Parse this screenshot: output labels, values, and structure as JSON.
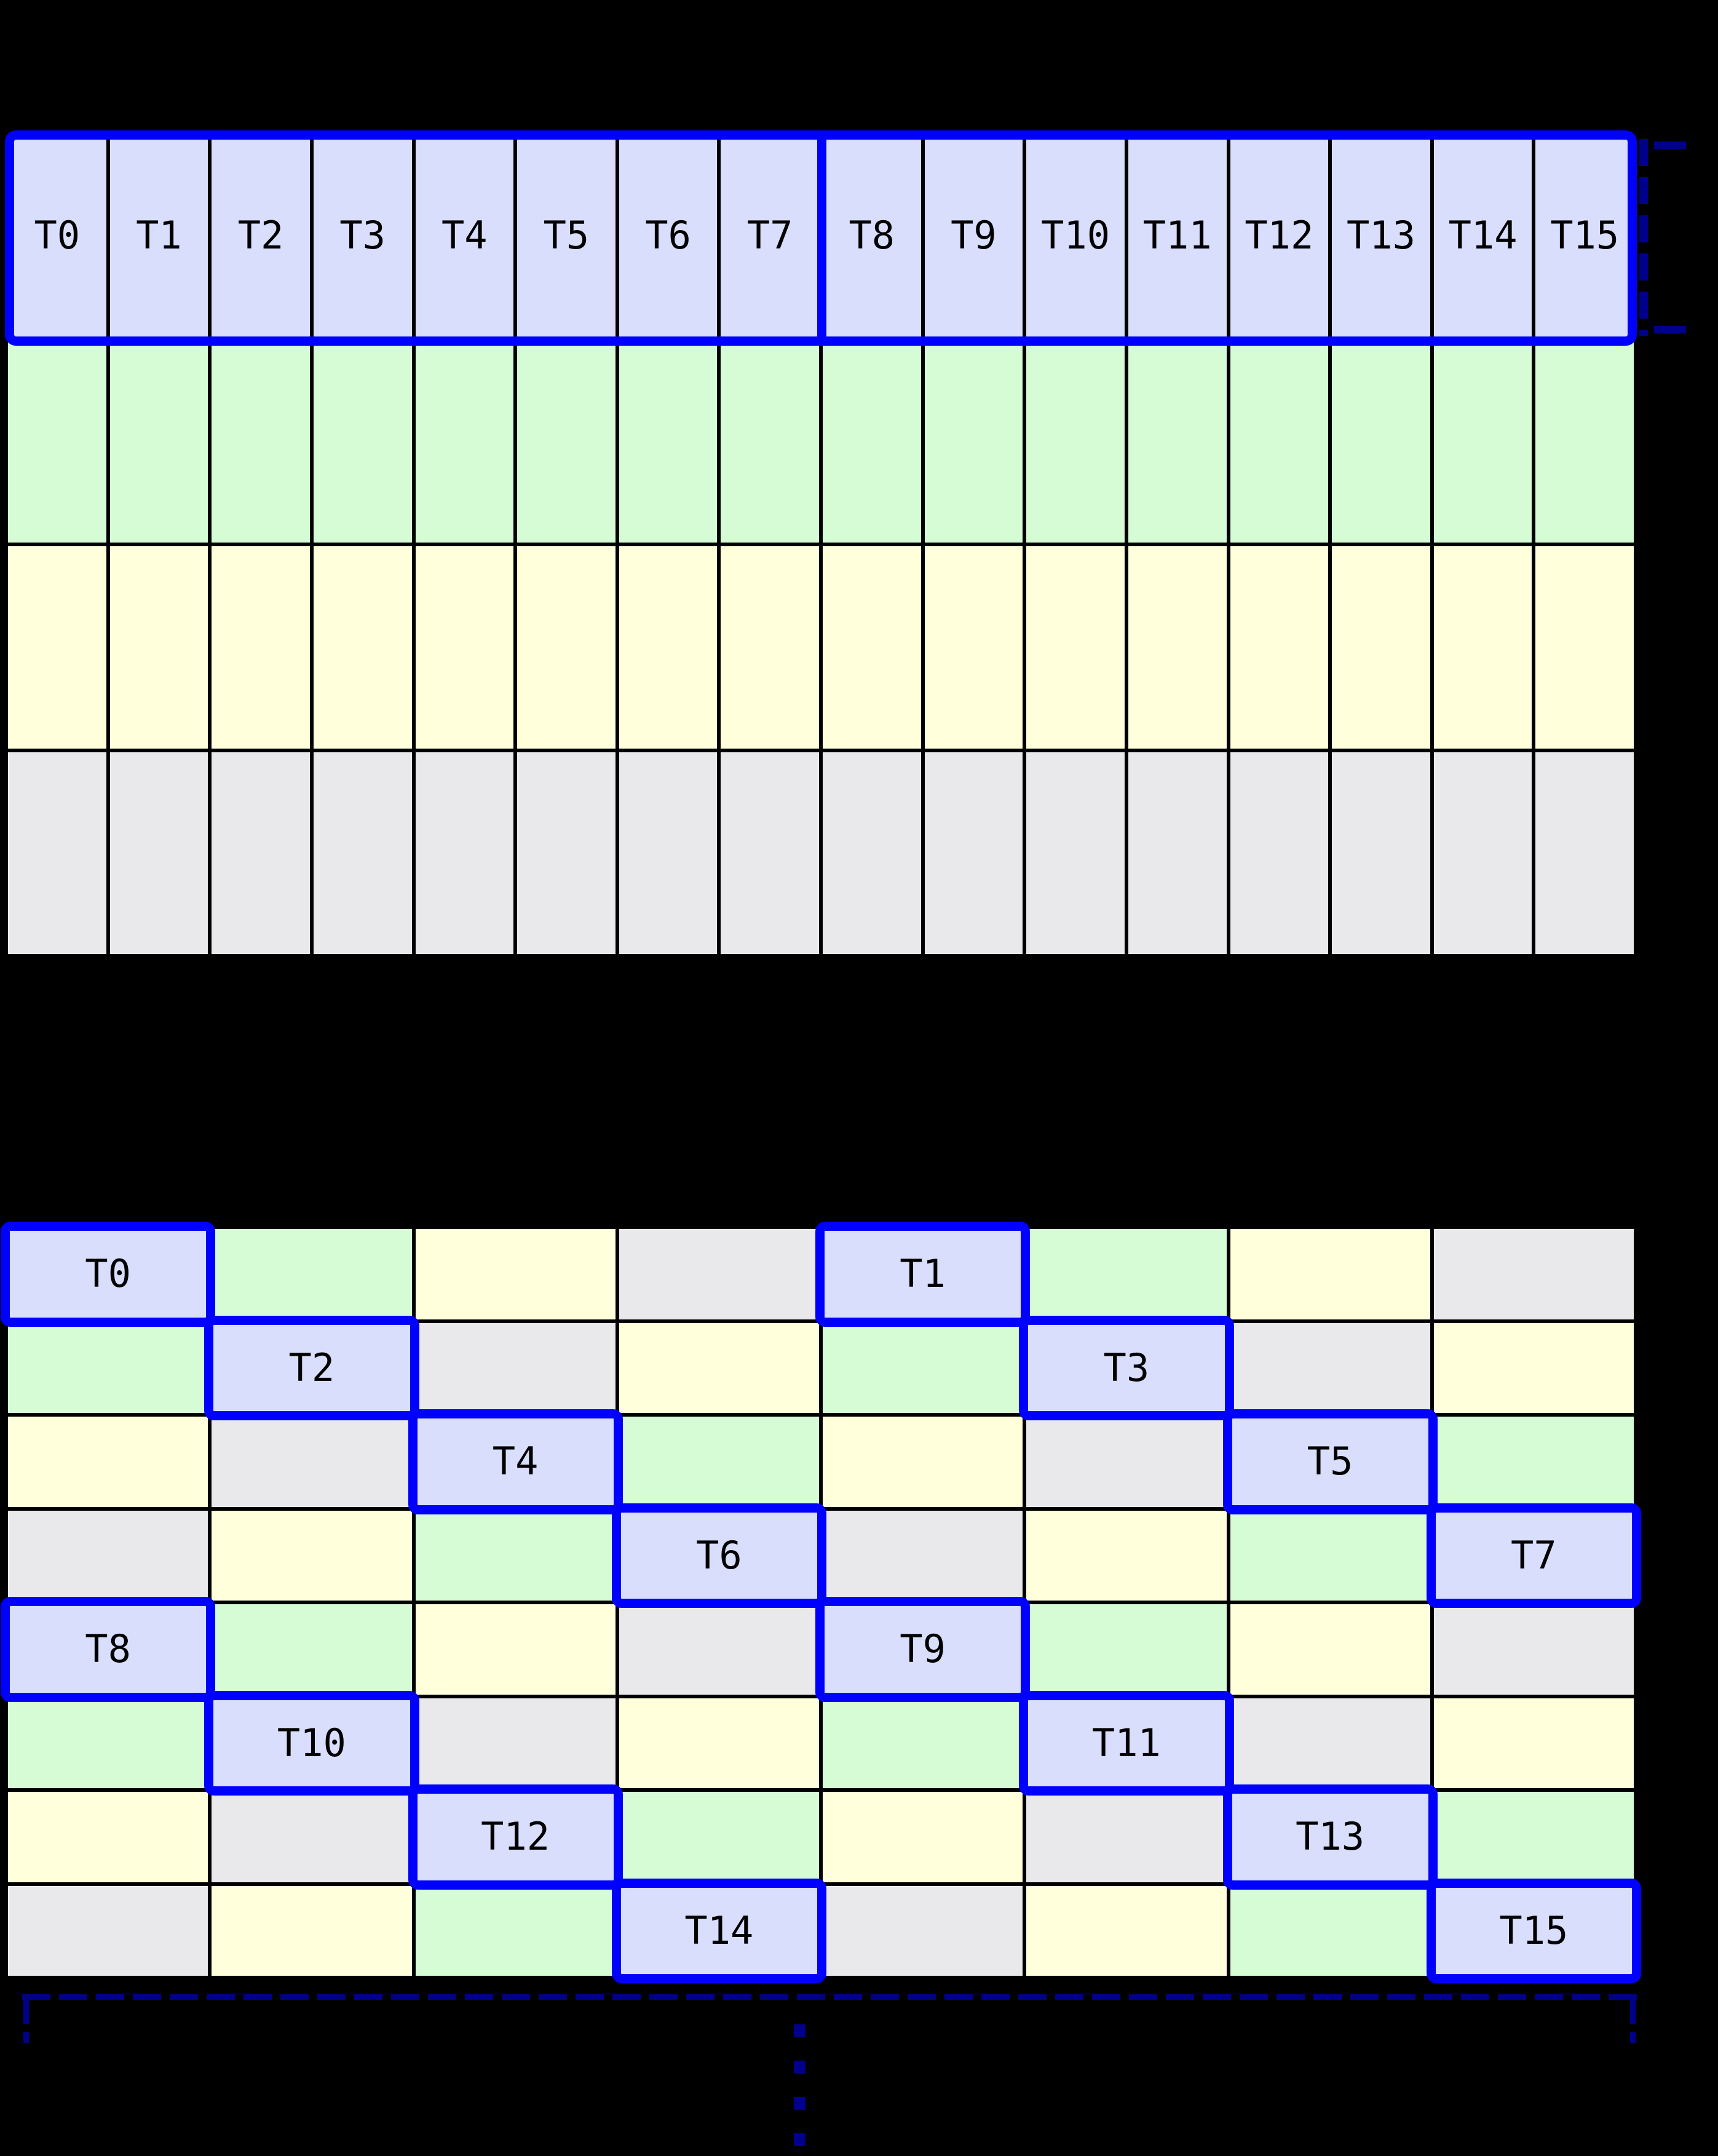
{
  "colors": {
    "cell_thread": "#d8defb",
    "cell_green": "#d5fcd5",
    "cell_yellow": "#ffffdc",
    "cell_gray": "#e9e9eb",
    "highlight_border": "#0000ff",
    "bracket": "#00008b",
    "grid_line": "#000000",
    "background": "#000000"
  },
  "table1": {
    "columns": 16,
    "rows": 4,
    "thread_labels": [
      "T0",
      "T1",
      "T2",
      "T3",
      "T4",
      "T5",
      "T6",
      "T7",
      "T8",
      "T9",
      "T10",
      "T11",
      "T12",
      "T13",
      "T14",
      "T15"
    ],
    "row_colors": [
      "cell_thread",
      "cell_green",
      "cell_yellow",
      "cell_gray"
    ],
    "highlight_groups": [
      {
        "threads": [
          "T0",
          "T1",
          "T2",
          "T3",
          "T4",
          "T5",
          "T6",
          "T7"
        ]
      },
      {
        "threads": [
          "T8",
          "T9",
          "T10",
          "T11",
          "T12",
          "T13",
          "T14",
          "T15"
        ]
      }
    ]
  },
  "table2": {
    "columns": 8,
    "rows": 8,
    "color_pattern": [
      [
        "cell_thread",
        "cell_green",
        "cell_yellow",
        "cell_gray"
      ],
      [
        "cell_green",
        "cell_thread",
        "cell_gray",
        "cell_yellow"
      ],
      [
        "cell_yellow",
        "cell_gray",
        "cell_thread",
        "cell_green"
      ],
      [
        "cell_gray",
        "cell_yellow",
        "cell_green",
        "cell_thread"
      ]
    ],
    "thread_cells": [
      {
        "label": "T0",
        "row": 0,
        "col": 0
      },
      {
        "label": "T1",
        "row": 0,
        "col": 4
      },
      {
        "label": "T2",
        "row": 1,
        "col": 1
      },
      {
        "label": "T3",
        "row": 1,
        "col": 5
      },
      {
        "label": "T4",
        "row": 2,
        "col": 2
      },
      {
        "label": "T5",
        "row": 2,
        "col": 6
      },
      {
        "label": "T6",
        "row": 3,
        "col": 3
      },
      {
        "label": "T7",
        "row": 3,
        "col": 7
      },
      {
        "label": "T8",
        "row": 4,
        "col": 0
      },
      {
        "label": "T9",
        "row": 4,
        "col": 4
      },
      {
        "label": "T10",
        "row": 5,
        "col": 1
      },
      {
        "label": "T11",
        "row": 5,
        "col": 5
      },
      {
        "label": "T12",
        "row": 6,
        "col": 2
      },
      {
        "label": "T13",
        "row": 6,
        "col": 6
      },
      {
        "label": "T14",
        "row": 7,
        "col": 3
      },
      {
        "label": "T15",
        "row": 7,
        "col": 7
      }
    ]
  },
  "icons": {
    "row_bracket": "dashed-square-bracket-icon",
    "warp_bracket": "dashed-bottom-bracket-icon",
    "ellipsis": "vertical-dashed-ellipsis-icon"
  }
}
